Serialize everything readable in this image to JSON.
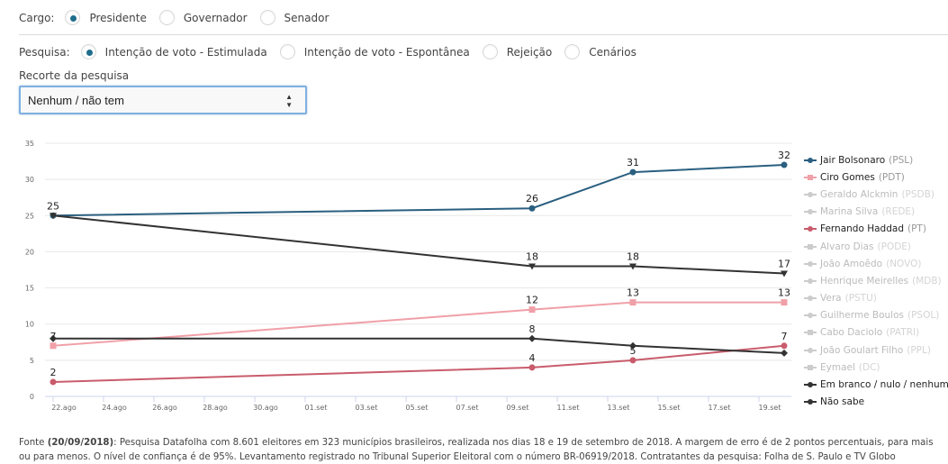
{
  "filters": {
    "cargo": {
      "label": "Cargo:",
      "options": [
        {
          "label": "Presidente",
          "checked": true
        },
        {
          "label": "Governador",
          "checked": false
        },
        {
          "label": "Senador",
          "checked": false
        }
      ]
    },
    "pesquisa": {
      "label": "Pesquisa:",
      "options": [
        {
          "label": "Intenção de voto - Estimulada",
          "checked": true
        },
        {
          "label": "Intenção de voto - Espontânea",
          "checked": false
        },
        {
          "label": "Rejeição",
          "checked": false
        },
        {
          "label": "Cenários",
          "checked": false
        }
      ]
    },
    "recorte": {
      "label": "Recorte da pesquisa",
      "selected": "Nenhum / não tem",
      "arrows": "▲\n▼"
    }
  },
  "chart_data": {
    "type": "line",
    "title": "",
    "xlabel": "",
    "ylabel": "",
    "ylim": [
      0,
      35
    ],
    "yticks": [
      0,
      5,
      10,
      15,
      20,
      25,
      30,
      35
    ],
    "x_tick_labels": [
      "22.ago",
      "24.ago",
      "26.ago",
      "28.ago",
      "30.ago",
      "01.set",
      "03.set",
      "05.set",
      "07.set",
      "09.set",
      "11.set",
      "13.set",
      "15.set",
      "17.set",
      "19.set"
    ],
    "x_tick_days": [
      0,
      2,
      4,
      6,
      8,
      10,
      12,
      14,
      16,
      18,
      20,
      22,
      24,
      26,
      28
    ],
    "xlim_days": [
      0,
      29.3
    ],
    "x_dates": [
      "22.ago",
      "10.set",
      "14.set",
      "20.set"
    ],
    "x_days": [
      0,
      19,
      23,
      29
    ],
    "grid": true,
    "legend_position": "right",
    "series": [
      {
        "name": "Jair Bolsonaro",
        "party": "(PSL)",
        "values": [
          25,
          26,
          31,
          32
        ],
        "color": "#2a5f80",
        "marker": "circle",
        "active": true,
        "labels": [
          25,
          26,
          31,
          32
        ]
      },
      {
        "name": "Ciro Gomes",
        "party": "(PDT)",
        "values": [
          7,
          12,
          13,
          13
        ],
        "color": "#f0a0a8",
        "marker": "square",
        "active": true,
        "labels": [
          7,
          12,
          13,
          13
        ]
      },
      {
        "name": "Geraldo Alckmin",
        "party": "(PSDB)",
        "values": [],
        "color": "#cccccc",
        "marker": "triangle",
        "active": false
      },
      {
        "name": "Marina Silva",
        "party": "(REDE)",
        "values": [],
        "color": "#cccccc",
        "marker": "diamond",
        "active": false
      },
      {
        "name": "Fernando Haddad",
        "party": "(PT)",
        "values": [
          2,
          4,
          5,
          7
        ],
        "color": "#c95c6c",
        "marker": "circle",
        "active": true,
        "labels": [
          2,
          4,
          5,
          7
        ]
      },
      {
        "name": "Alvaro Dias",
        "party": "(PODE)",
        "values": [],
        "color": "#cccccc",
        "marker": "square",
        "active": false
      },
      {
        "name": "João Amoêdo",
        "party": "(NOVO)",
        "values": [],
        "color": "#cccccc",
        "marker": "triangle",
        "active": false
      },
      {
        "name": "Henrique Meirelles",
        "party": "(MDB)",
        "values": [],
        "color": "#cccccc",
        "marker": "triangle-down",
        "active": false
      },
      {
        "name": "Vera",
        "party": "(PSTU)",
        "values": [],
        "color": "#cccccc",
        "marker": "triangle",
        "active": false
      },
      {
        "name": "Guilherme Boulos",
        "party": "(PSOL)",
        "values": [],
        "color": "#cccccc",
        "marker": "circle",
        "active": false
      },
      {
        "name": "Cabo Daciolo",
        "party": "(PATRI)",
        "values": [],
        "color": "#cccccc",
        "marker": "square",
        "active": false
      },
      {
        "name": "João Goulart Filho",
        "party": "(PPL)",
        "values": [],
        "color": "#cccccc",
        "marker": "triangle",
        "active": false
      },
      {
        "name": "Eymael",
        "party": "(DC)",
        "values": [],
        "color": "#cccccc",
        "marker": "square",
        "active": false
      },
      {
        "name": "Em branco / nulo / nenhum",
        "party": "",
        "values": [
          25,
          18,
          18,
          17
        ],
        "color": "#333333",
        "marker": "triangle-down",
        "active": true,
        "labels": [
          null,
          18,
          18,
          17
        ]
      },
      {
        "name": "Não sabe",
        "party": "",
        "values": [
          8,
          8,
          7,
          6
        ],
        "color": "#333333",
        "marker": "diamond",
        "active": true,
        "labels": [
          null,
          8,
          null,
          null
        ]
      }
    ]
  },
  "footer": {
    "prefix": "Fonte ",
    "date": "(20/09/2018)",
    "text": ": Pesquisa Datafolha com 8.601 eleitores em 323 municípios brasileiros, realizada nos dias 18 e 19 de setembro de 2018. A margem de erro é de 2 pontos percentuais, para mais ou para menos. O nível de confiança é de 95%. Levantamento registrado no Tribunal Superior Eleitoral com o número BR-06919/2018. Contratantes da pesquisa: Folha de S. Paulo e TV Globo"
  }
}
